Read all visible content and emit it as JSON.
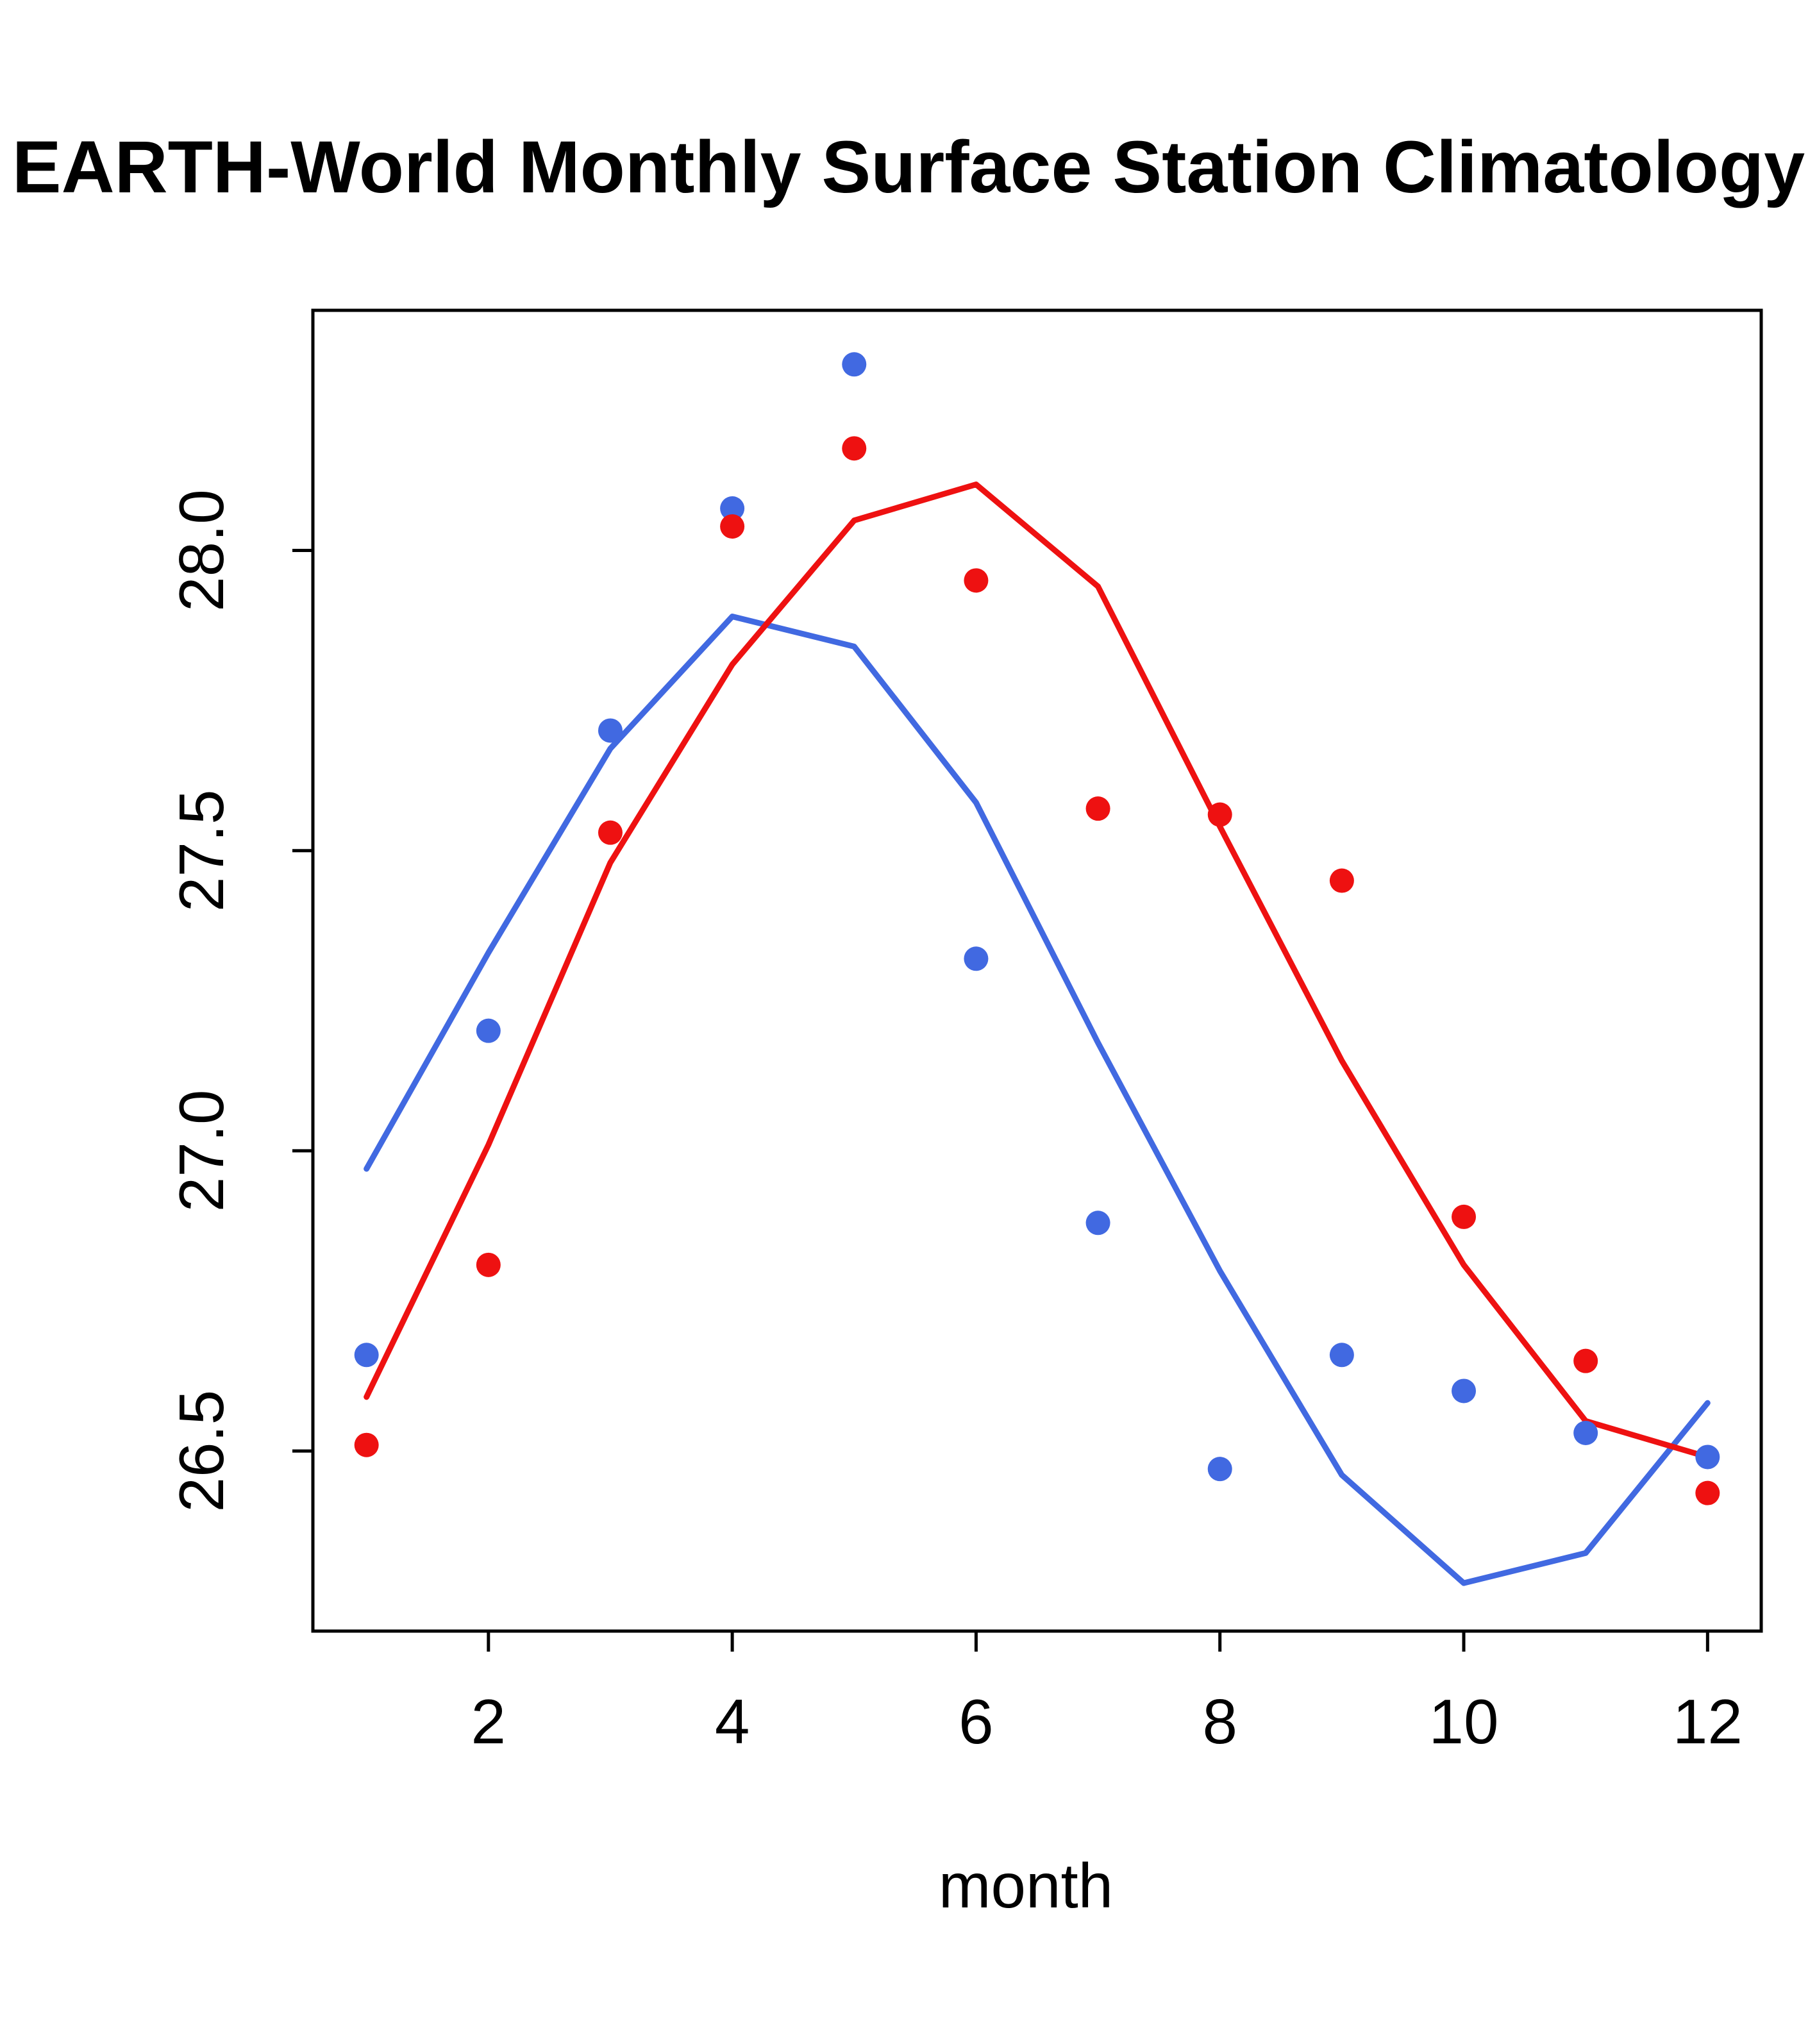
{
  "chart_data": {
    "type": "line+scatter",
    "title": "EARTH-World Monthly Surface Station Climatology",
    "xlabel": "month",
    "ylabel": "",
    "x": [
      1,
      2,
      3,
      4,
      5,
      6,
      7,
      8,
      9,
      10,
      11,
      12
    ],
    "xticks": [
      2,
      4,
      6,
      8,
      10,
      12
    ],
    "yticks": [
      "26.5",
      "27.0",
      "27.5",
      "28.0"
    ],
    "xlim": [
      0.56,
      12.44
    ],
    "ylim": [
      26.2,
      28.4
    ],
    "grid": false,
    "legend": "none",
    "axis_color": "#000000",
    "colors": {
      "blue": "#4169e1",
      "red": "#ee1111"
    },
    "series": [
      {
        "name": "blue-line",
        "type": "line",
        "color": "#4169e1",
        "values": [
          26.97,
          27.33,
          27.67,
          27.89,
          27.84,
          27.58,
          27.18,
          26.8,
          26.46,
          26.28,
          26.33,
          26.58
        ]
      },
      {
        "name": "red-line",
        "type": "line",
        "color": "#ee1111",
        "values": [
          26.59,
          27.01,
          27.48,
          27.81,
          28.05,
          28.11,
          27.94,
          27.54,
          27.15,
          26.81,
          26.55,
          26.49
        ]
      },
      {
        "name": "blue-points",
        "type": "points",
        "color": "#4169e1",
        "values": [
          26.66,
          27.2,
          27.7,
          28.07,
          28.31,
          27.32,
          26.88,
          26.47,
          26.66,
          26.6,
          26.53,
          26.49
        ]
      },
      {
        "name": "red-points",
        "type": "points",
        "color": "#ee1111",
        "values": [
          26.51,
          26.81,
          27.53,
          28.04,
          28.17,
          27.95,
          27.57,
          27.56,
          27.45,
          26.89,
          26.65,
          26.43
        ]
      }
    ]
  }
}
